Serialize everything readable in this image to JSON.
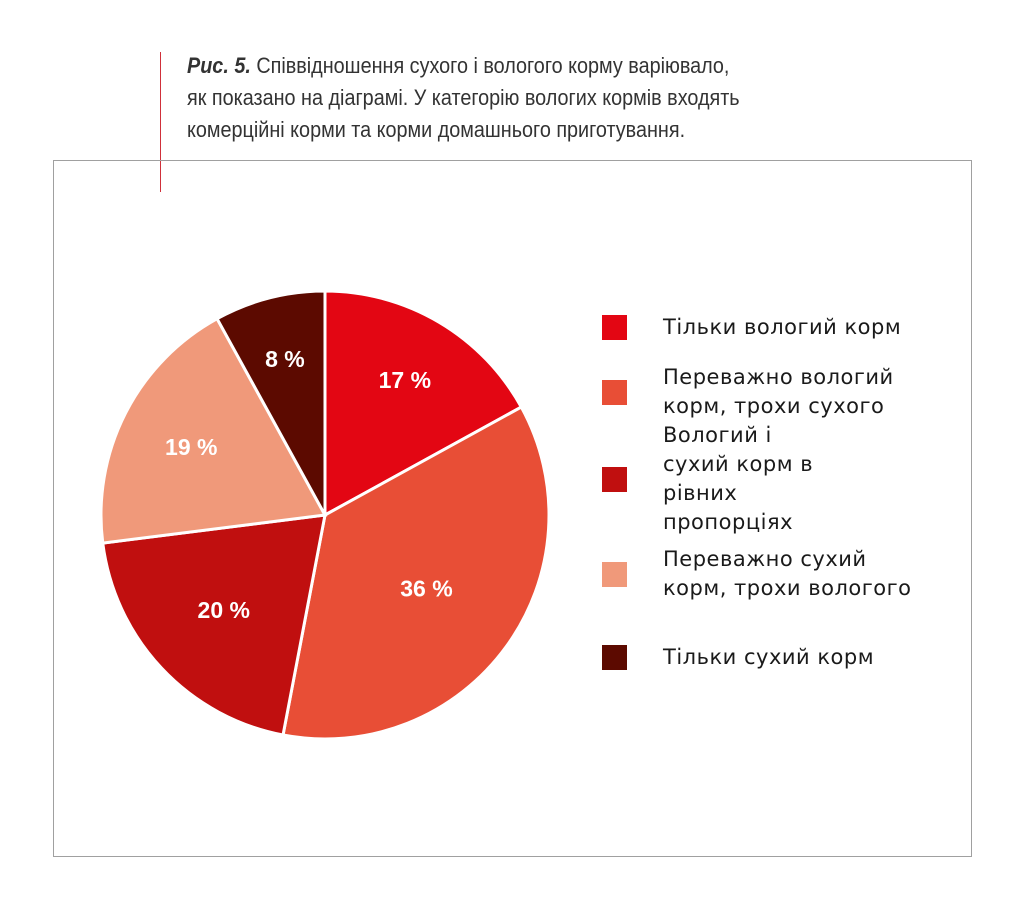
{
  "caption": {
    "prefix": "Рис. 5.",
    "lines": [
      " Співвідношення сухого і вологого корму варіювало,",
      "як показано на діаграмі. У категорію вологих кормів входять",
      "комерційні корми та корми домашнього приготування."
    ]
  },
  "chart_data": {
    "type": "pie",
    "title": "Рис. 5. Співвідношення сухого і вологого корму варіювало, як показано на діаграмі. У категорію вологих кормів входять комерційні корми та корми домашнього приготування.",
    "start": "top, clockwise",
    "legend_position": "right",
    "slices": [
      {
        "label": "Тільки вологий корм",
        "value": 17,
        "display": "17 %",
        "color": "#e30613"
      },
      {
        "label": "Переважно вологий корм, трохи сухого",
        "value": 36,
        "display": "36 %",
        "color": "#e84e36"
      },
      {
        "label": "Вологий і сухий корм в рівних пропорціях",
        "value": 20,
        "display": "20 %",
        "color": "#c00f0f"
      },
      {
        "label": "Переважно сухий корм, трохи вологого",
        "value": 19,
        "display": "19 %",
        "color": "#f0997a"
      },
      {
        "label": "Тільки сухий корм",
        "value": 8,
        "display": "8 %",
        "color": "#5c0a00"
      }
    ]
  }
}
